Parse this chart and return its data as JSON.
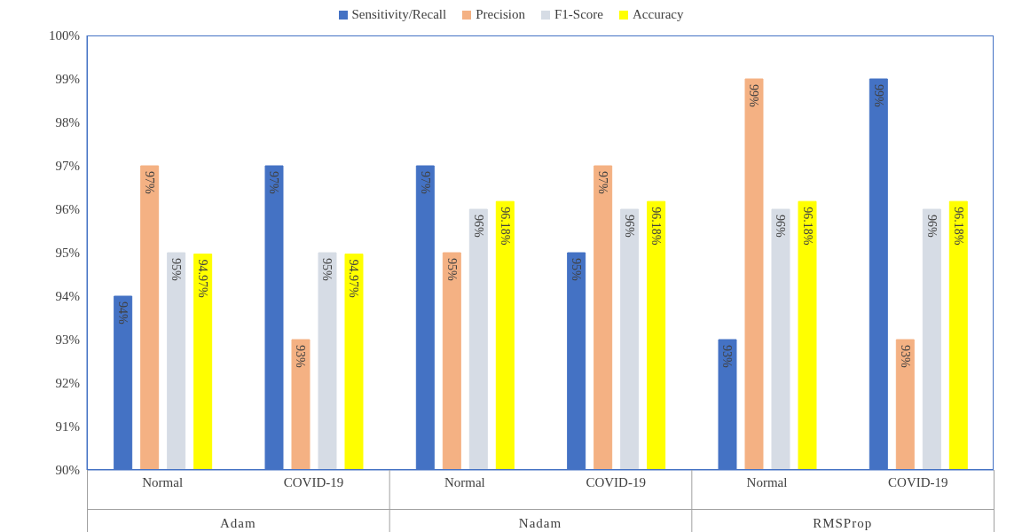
{
  "chart_data": {
    "type": "bar",
    "categories": [
      "Normal",
      "COVID-19",
      "Normal",
      "COVID-19",
      "Normal",
      "COVID-19"
    ],
    "annotations": [
      "Adam",
      "Nadam",
      "RMSProp"
    ],
    "series": [
      {
        "name": "Sensitivity/Recall",
        "color": "#4472c4",
        "values": [
          94,
          97,
          97,
          95,
          93,
          99
        ],
        "value_labels": [
          "94%",
          "97%",
          "97%",
          "95%",
          "93%",
          "99%"
        ]
      },
      {
        "name": "Precision",
        "color": "#f4b183",
        "values": [
          97,
          93,
          95,
          97,
          99,
          93
        ],
        "value_labels": [
          "97%",
          "93%",
          "95%",
          "97%",
          "99%",
          "93%"
        ]
      },
      {
        "name": "F1-Score",
        "color": "#d6dce5",
        "values": [
          95,
          95,
          96,
          96,
          96,
          96
        ],
        "value_labels": [
          "95%",
          "95%",
          "96%",
          "96%",
          "96%",
          "96%"
        ]
      },
      {
        "name": "Accuracy",
        "color": "#ffff00",
        "values": [
          94.97,
          94.97,
          96.18,
          96.18,
          96.18,
          96.18
        ],
        "value_labels": [
          "94.97%",
          "94.97%",
          "96.18%",
          "96.18%",
          "96.18%",
          "96.18%"
        ]
      }
    ],
    "ylim": [
      90,
      100
    ],
    "yticks": [
      {
        "value": 90,
        "label": "90%"
      },
      {
        "value": 91,
        "label": "91%"
      },
      {
        "value": 92,
        "label": "92%"
      },
      {
        "value": 93,
        "label": "93%"
      },
      {
        "value": 94,
        "label": "94%"
      },
      {
        "value": 95,
        "label": "95%"
      },
      {
        "value": 96,
        "label": "96%"
      },
      {
        "value": 97,
        "label": "97%"
      },
      {
        "value": 98,
        "label": "98%"
      },
      {
        "value": 99,
        "label": "99%"
      },
      {
        "value": 100,
        "label": "100%"
      }
    ],
    "grid": false,
    "legend": "top"
  }
}
